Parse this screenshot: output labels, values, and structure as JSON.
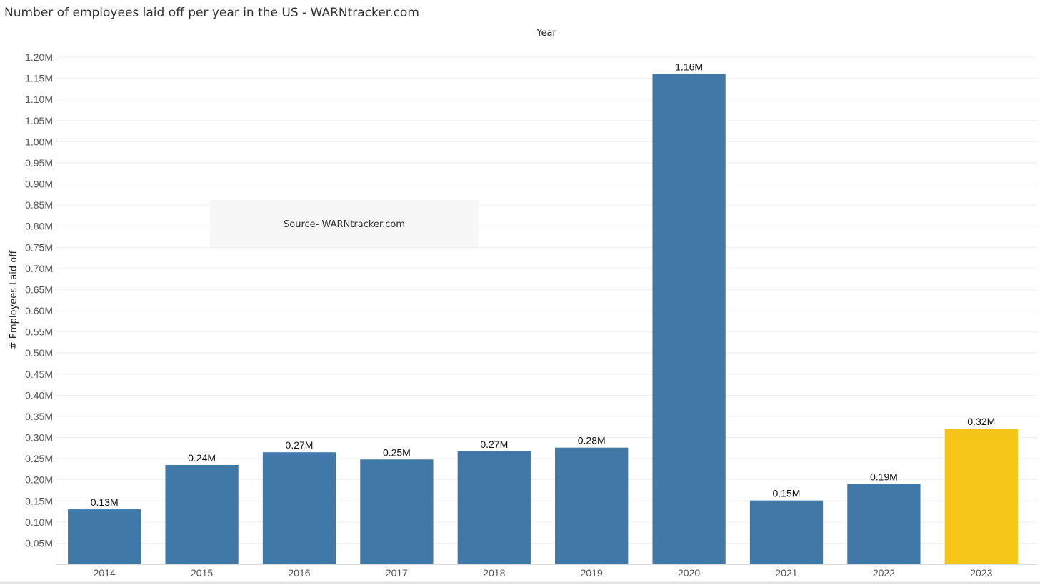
{
  "chart_data": {
    "type": "bar",
    "title": "Number of employees laid off per year in the US - WARNtracker.com",
    "xlabel": "Year",
    "ylabel": "# Employees Laid off",
    "categories": [
      "2014",
      "2015",
      "2016",
      "2017",
      "2018",
      "2019",
      "2020",
      "2021",
      "2022",
      "2023"
    ],
    "values": [
      0.13,
      0.235,
      0.265,
      0.248,
      0.267,
      0.276,
      1.16,
      0.151,
      0.19,
      0.321
    ],
    "data_labels": [
      "0.13M",
      "0.24M",
      "0.27M",
      "0.25M",
      "0.27M",
      "0.28M",
      "1.16M",
      "0.15M",
      "0.19M",
      "0.32M"
    ],
    "value_unit": "millions",
    "ylim": [
      0,
      1.2
    ],
    "yticks": [
      0.05,
      0.1,
      0.15,
      0.2,
      0.25,
      0.3,
      0.35,
      0.4,
      0.45,
      0.5,
      0.55,
      0.6,
      0.65,
      0.7,
      0.75,
      0.8,
      0.85,
      0.9,
      0.95,
      1.0,
      1.05,
      1.1,
      1.15,
      1.2
    ],
    "ytick_labels": [
      "0.05M",
      "0.10M",
      "0.15M",
      "0.20M",
      "0.25M",
      "0.30M",
      "0.35M",
      "0.40M",
      "0.45M",
      "0.50M",
      "0.55M",
      "0.60M",
      "0.65M",
      "0.70M",
      "0.75M",
      "0.80M",
      "0.85M",
      "0.90M",
      "0.95M",
      "1.00M",
      "1.05M",
      "1.10M",
      "1.15M",
      "1.20M"
    ],
    "grid": true,
    "bar_colors": [
      "#4079a8",
      "#4079a8",
      "#4079a8",
      "#4079a8",
      "#4079a8",
      "#4079a8",
      "#4079a8",
      "#4079a8",
      "#4079a8",
      "#f5c518"
    ],
    "annotation": "Source- WARNtracker.com"
  }
}
